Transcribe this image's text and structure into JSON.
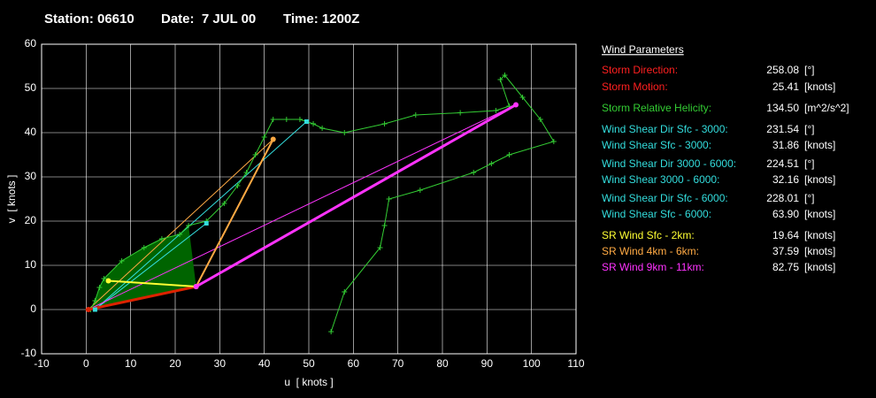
{
  "header": {
    "station": "Station: 06610",
    "date": "Date:  7 JUL 00",
    "time": "Time: 1200Z"
  },
  "chart_data": {
    "type": "hodograph",
    "xlabel": "u  [ knots ]",
    "ylabel": "v  [ knots ]",
    "xlim": [
      -10,
      110
    ],
    "xticks": [
      -10,
      0,
      10,
      20,
      30,
      40,
      50,
      60,
      70,
      80,
      90,
      100,
      110
    ],
    "ylim": [
      -10,
      60
    ],
    "yticks": [
      -10,
      0,
      10,
      20,
      30,
      40,
      50,
      60
    ],
    "grid": true,
    "series": [
      {
        "color": "#006400",
        "fill": true,
        "width": 0,
        "marker": "none",
        "x": [
          1,
          2,
          3,
          4,
          8,
          13,
          17,
          21,
          23,
          24.7
        ],
        "values": [
          0,
          2,
          5,
          7,
          11,
          14,
          16,
          17,
          19,
          5.2
        ]
      },
      {
        "color": "#ffaa44",
        "width": 1,
        "marker": "none",
        "x": [
          0.5,
          42
        ],
        "values": [
          0,
          38.5
        ]
      },
      {
        "color": "#33dddd",
        "width": 1,
        "marker": "none",
        "x": [
          2,
          27
        ],
        "values": [
          0,
          19.5
        ]
      },
      {
        "color": "#33dddd",
        "width": 1,
        "marker": "none",
        "x": [
          2,
          49.5
        ],
        "values": [
          0,
          42.5
        ]
      },
      {
        "color": "#ff33ff",
        "width": 1,
        "marker": "none",
        "x": [
          0.5,
          96.5
        ],
        "values": [
          0,
          46.3
        ]
      },
      {
        "color": "#33cc33",
        "width": 1,
        "marker": "plus",
        "x": [
          1,
          2,
          3,
          4,
          8,
          13,
          17,
          21,
          23,
          27,
          31,
          34,
          36,
          38,
          40,
          42,
          45,
          48,
          51,
          53,
          58,
          67,
          74,
          84,
          92,
          95,
          93,
          94,
          98,
          102,
          105,
          95,
          91,
          87,
          75,
          68,
          67,
          66,
          58,
          55
        ],
        "values": [
          0,
          2,
          5,
          7,
          11,
          14,
          16,
          17,
          19,
          20,
          24,
          28,
          31,
          35,
          39,
          43,
          43,
          43,
          42,
          41,
          40,
          42,
          44,
          44.5,
          45,
          46,
          52,
          53,
          48,
          43,
          38,
          35,
          33,
          31,
          27,
          25,
          19,
          14,
          4,
          -5
        ]
      },
      {
        "color": "#dd2200",
        "width": 3,
        "marker": "dot",
        "x": [
          0.5,
          24.7
        ],
        "values": [
          0,
          5.2
        ]
      },
      {
        "color": "#ffff33",
        "width": 2,
        "marker": "dot",
        "x": [
          5,
          24.7
        ],
        "values": [
          6.5,
          5.2
        ]
      },
      {
        "color": "#ffaa44",
        "width": 2,
        "marker": "dot",
        "x": [
          42,
          24.7
        ],
        "values": [
          38.5,
          5.2
        ]
      },
      {
        "color": "#ff33ff",
        "width": 3,
        "marker": "dot",
        "x": [
          96.5,
          24.7
        ],
        "values": [
          46.3,
          5.2
        ]
      },
      {
        "color": "#33dddd",
        "width": 0,
        "marker": "square",
        "x": [
          2,
          27,
          49.5
        ],
        "values": [
          0,
          19.5,
          42.5
        ]
      }
    ]
  },
  "parameters": {
    "title": "Wind Parameters",
    "rows": [
      {
        "label": "Storm Direction:",
        "value": "258.08",
        "unit": "[°]",
        "color": "#ff2020"
      },
      {
        "label": "Storm Motion:",
        "value": "25.41",
        "unit": "[knots]",
        "color": "#ff2020"
      },
      {
        "label": "Storm Relative Helicity:",
        "value": "134.50",
        "unit": "[m^2/s^2]",
        "color": "#33cc33"
      },
      {
        "label": "Wind Shear Dir Sfc - 3000:",
        "value": "231.54",
        "unit": "[°]",
        "color": "#33dddd"
      },
      {
        "label": "Wind Shear Sfc - 3000:",
        "value": "31.86",
        "unit": "[knots]",
        "color": "#33dddd"
      },
      {
        "label": "Wind Shear Dir 3000 - 6000:",
        "value": "224.51",
        "unit": "[°]",
        "color": "#33dddd"
      },
      {
        "label": "Wind Shear 3000 - 6000:",
        "value": "32.16",
        "unit": "[knots]",
        "color": "#33dddd"
      },
      {
        "label": "Wind Shear Dir Sfc - 6000:",
        "value": "228.01",
        "unit": "[°]",
        "color": "#33dddd"
      },
      {
        "label": "Wind Shear Sfc - 6000:",
        "value": "63.90",
        "unit": "[knots]",
        "color": "#33dddd"
      },
      {
        "label": "SR Wind Sfc - 2km:",
        "value": "19.64",
        "unit": "[knots]",
        "color": "#ffff33"
      },
      {
        "label": "SR Wind 4km - 6km:",
        "value": "37.59",
        "unit": "[knots]",
        "color": "#ffaa44"
      },
      {
        "label": "SR Wind 9km - 11km:",
        "value": "82.75",
        "unit": "[knots]",
        "color": "#ff33ff"
      }
    ]
  }
}
